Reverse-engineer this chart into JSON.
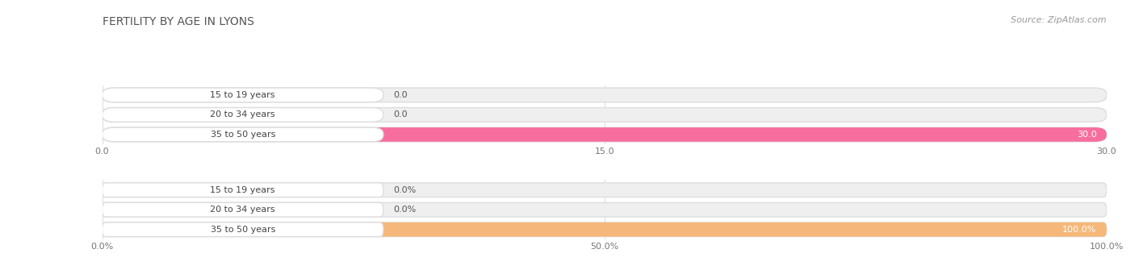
{
  "title": "FERTILITY BY AGE IN LYONS",
  "source": "Source: ZipAtlas.com",
  "top_chart": {
    "categories": [
      "15 to 19 years",
      "20 to 34 years",
      "35 to 50 years"
    ],
    "values": [
      0.0,
      0.0,
      30.0
    ],
    "max_val": 30.0,
    "xticks": [
      0.0,
      15.0,
      30.0
    ],
    "bar_color": "#F76E9E",
    "bar_bg_color": "#EFEFEF",
    "bar_border_color": "#DDDDDD"
  },
  "bottom_chart": {
    "categories": [
      "15 to 19 years",
      "20 to 34 years",
      "35 to 50 years"
    ],
    "values": [
      0.0,
      0.0,
      100.0
    ],
    "max_val": 100.0,
    "xticks": [
      0.0,
      50.0,
      100.0
    ],
    "bar_color": "#F5B87A",
    "bar_bg_color": "#EFEFEF",
    "bar_border_color": "#DDDDDD"
  },
  "bg_color": "#ffffff",
  "title_color": "#555555",
  "title_fontsize": 10,
  "label_fontsize": 8,
  "tick_fontsize": 8,
  "source_fontsize": 8,
  "source_color": "#999999"
}
